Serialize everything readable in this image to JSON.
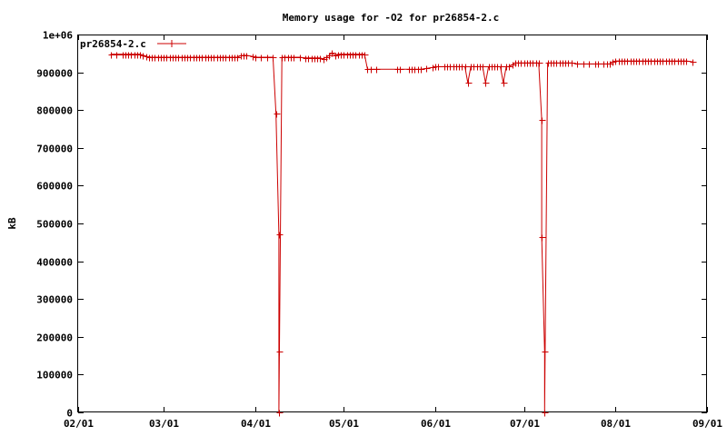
{
  "chart_data": {
    "type": "line",
    "title": "Memory usage for -O2 for pr26854-2.c",
    "xlabel": "",
    "ylabel": "kB",
    "x_axis": {
      "type": "date",
      "range": [
        "2000-02-01",
        "2000-09-01"
      ],
      "ticks": [
        {
          "date": "2000-02-01",
          "label": "02/01"
        },
        {
          "date": "2000-03-01",
          "label": "03/01"
        },
        {
          "date": "2000-04-01",
          "label": "04/01"
        },
        {
          "date": "2000-05-01",
          "label": "05/01"
        },
        {
          "date": "2000-06-01",
          "label": "06/01"
        },
        {
          "date": "2000-07-01",
          "label": "07/01"
        },
        {
          "date": "2000-08-01",
          "label": "08/01"
        },
        {
          "date": "2000-09-01",
          "label": "09/01"
        }
      ]
    },
    "y_axis": {
      "range": [
        0,
        1000000
      ],
      "ticks": [
        {
          "value": 0,
          "label": "0"
        },
        {
          "value": 100000,
          "label": "100000"
        },
        {
          "value": 200000,
          "label": "200000"
        },
        {
          "value": 300000,
          "label": "300000"
        },
        {
          "value": 400000,
          "label": "400000"
        },
        {
          "value": 500000,
          "label": "500000"
        },
        {
          "value": 600000,
          "label": "600000"
        },
        {
          "value": 700000,
          "label": "700000"
        },
        {
          "value": 800000,
          "label": "800000"
        },
        {
          "value": 900000,
          "label": "900000"
        },
        {
          "value": 1000000,
          "label": "1e+06"
        }
      ]
    },
    "grid": false,
    "legend": {
      "position": "top-left",
      "entries": [
        "pr26854-2.c"
      ]
    },
    "series": [
      {
        "name": "pr26854-2.c",
        "color": "#cc0000",
        "marker": "plus",
        "points": [
          [
            "2000-02-12",
            948000
          ],
          [
            "2000-02-14",
            948000
          ],
          [
            "2000-02-16",
            948000
          ],
          [
            "2000-02-17",
            948000
          ],
          [
            "2000-02-18",
            948000
          ],
          [
            "2000-02-19",
            948000
          ],
          [
            "2000-02-20",
            948000
          ],
          [
            "2000-02-21",
            948000
          ],
          [
            "2000-02-22",
            948000
          ],
          [
            "2000-02-23",
            945000
          ],
          [
            "2000-02-24",
            942000
          ],
          [
            "2000-02-25",
            940000
          ],
          [
            "2000-02-26",
            940000
          ],
          [
            "2000-02-27",
            940000
          ],
          [
            "2000-02-28",
            940000
          ],
          [
            "2000-02-29",
            940000
          ],
          [
            "2000-03-01",
            940000
          ],
          [
            "2000-03-02",
            940000
          ],
          [
            "2000-03-03",
            940000
          ],
          [
            "2000-03-04",
            940000
          ],
          [
            "2000-03-05",
            940000
          ],
          [
            "2000-03-06",
            940000
          ],
          [
            "2000-03-07",
            940000
          ],
          [
            "2000-03-08",
            940000
          ],
          [
            "2000-03-09",
            940000
          ],
          [
            "2000-03-10",
            940000
          ],
          [
            "2000-03-11",
            940000
          ],
          [
            "2000-03-12",
            940000
          ],
          [
            "2000-03-13",
            940000
          ],
          [
            "2000-03-14",
            940000
          ],
          [
            "2000-03-15",
            940000
          ],
          [
            "2000-03-16",
            940000
          ],
          [
            "2000-03-17",
            940000
          ],
          [
            "2000-03-18",
            940000
          ],
          [
            "2000-03-19",
            940000
          ],
          [
            "2000-03-20",
            940000
          ],
          [
            "2000-03-21",
            940000
          ],
          [
            "2000-03-22",
            940000
          ],
          [
            "2000-03-23",
            940000
          ],
          [
            "2000-03-24",
            940000
          ],
          [
            "2000-03-25",
            940000
          ],
          [
            "2000-03-26",
            940000
          ],
          [
            "2000-03-27",
            944000
          ],
          [
            "2000-03-28",
            945000
          ],
          [
            "2000-03-29",
            945000
          ],
          [
            "2000-03-31",
            942000
          ],
          [
            "2000-04-01",
            940000
          ],
          [
            "2000-04-03",
            940000
          ],
          [
            "2000-04-05",
            940000
          ],
          [
            "2000-04-07",
            940000
          ],
          [
            "2000-04-08",
            790000
          ],
          [
            "2000-04-09",
            470000
          ],
          [
            "2000-04-09",
            160000
          ],
          [
            "2000-04-09",
            0
          ],
          [
            "2000-04-10",
            940000
          ],
          [
            "2000-04-11",
            940000
          ],
          [
            "2000-04-12",
            940000
          ],
          [
            "2000-04-13",
            940000
          ],
          [
            "2000-04-14",
            940000
          ],
          [
            "2000-04-16",
            940000
          ],
          [
            "2000-04-18",
            938000
          ],
          [
            "2000-04-19",
            938000
          ],
          [
            "2000-04-20",
            938000
          ],
          [
            "2000-04-21",
            938000
          ],
          [
            "2000-04-22",
            938000
          ],
          [
            "2000-04-23",
            938000
          ],
          [
            "2000-04-24",
            935000
          ],
          [
            "2000-04-25",
            940000
          ],
          [
            "2000-04-26",
            945000
          ],
          [
            "2000-04-27",
            952000
          ],
          [
            "2000-04-28",
            945000
          ],
          [
            "2000-04-29",
            948000
          ],
          [
            "2000-04-30",
            948000
          ],
          [
            "2000-05-01",
            948000
          ],
          [
            "2000-05-02",
            948000
          ],
          [
            "2000-05-03",
            948000
          ],
          [
            "2000-05-04",
            948000
          ],
          [
            "2000-05-05",
            948000
          ],
          [
            "2000-05-06",
            948000
          ],
          [
            "2000-05-07",
            948000
          ],
          [
            "2000-05-08",
            948000
          ],
          [
            "2000-05-09",
            908000
          ],
          [
            "2000-05-10",
            908000
          ],
          [
            "2000-05-12",
            908000
          ],
          [
            "2000-05-19",
            908000
          ],
          [
            "2000-05-20",
            908000
          ],
          [
            "2000-05-23",
            908000
          ],
          [
            "2000-05-24",
            908000
          ],
          [
            "2000-05-25",
            908000
          ],
          [
            "2000-05-26",
            908000
          ],
          [
            "2000-05-27",
            908000
          ],
          [
            "2000-05-29",
            910000
          ],
          [
            "2000-05-31",
            913000
          ],
          [
            "2000-06-01",
            915000
          ],
          [
            "2000-06-02",
            915000
          ],
          [
            "2000-06-04",
            915000
          ],
          [
            "2000-06-05",
            915000
          ],
          [
            "2000-06-06",
            915000
          ],
          [
            "2000-06-07",
            915000
          ],
          [
            "2000-06-08",
            915000
          ],
          [
            "2000-06-09",
            915000
          ],
          [
            "2000-06-10",
            915000
          ],
          [
            "2000-06-11",
            915000
          ],
          [
            "2000-06-12",
            872000
          ],
          [
            "2000-06-13",
            915000
          ],
          [
            "2000-06-14",
            915000
          ],
          [
            "2000-06-15",
            915000
          ],
          [
            "2000-06-16",
            915000
          ],
          [
            "2000-06-17",
            915000
          ],
          [
            "2000-06-18",
            872000
          ],
          [
            "2000-06-19",
            915000
          ],
          [
            "2000-06-20",
            915000
          ],
          [
            "2000-06-21",
            915000
          ],
          [
            "2000-06-22",
            915000
          ],
          [
            "2000-06-23",
            915000
          ],
          [
            "2000-06-24",
            872000
          ],
          [
            "2000-06-25",
            915000
          ],
          [
            "2000-06-26",
            915000
          ],
          [
            "2000-06-27",
            920000
          ],
          [
            "2000-06-28",
            925000
          ],
          [
            "2000-06-29",
            925000
          ],
          [
            "2000-06-30",
            925000
          ],
          [
            "2000-07-01",
            925000
          ],
          [
            "2000-07-02",
            925000
          ],
          [
            "2000-07-03",
            925000
          ],
          [
            "2000-07-04",
            925000
          ],
          [
            "2000-07-05",
            925000
          ],
          [
            "2000-07-06",
            925000
          ],
          [
            "2000-07-07",
            775000
          ],
          [
            "2000-07-07",
            465000
          ],
          [
            "2000-07-08",
            160000
          ],
          [
            "2000-07-08",
            0
          ],
          [
            "2000-07-09",
            925000
          ],
          [
            "2000-07-10",
            925000
          ],
          [
            "2000-07-11",
            925000
          ],
          [
            "2000-07-12",
            925000
          ],
          [
            "2000-07-13",
            925000
          ],
          [
            "2000-07-14",
            925000
          ],
          [
            "2000-07-15",
            925000
          ],
          [
            "2000-07-16",
            925000
          ],
          [
            "2000-07-17",
            925000
          ],
          [
            "2000-07-19",
            922000
          ],
          [
            "2000-07-21",
            922000
          ],
          [
            "2000-07-23",
            922000
          ],
          [
            "2000-07-25",
            922000
          ],
          [
            "2000-07-26",
            922000
          ],
          [
            "2000-07-28",
            922000
          ],
          [
            "2000-07-29",
            922000
          ],
          [
            "2000-07-30",
            922000
          ],
          [
            "2000-07-31",
            928000
          ],
          [
            "2000-08-01",
            930000
          ],
          [
            "2000-08-02",
            930000
          ],
          [
            "2000-08-03",
            930000
          ],
          [
            "2000-08-04",
            930000
          ],
          [
            "2000-08-05",
            930000
          ],
          [
            "2000-08-06",
            930000
          ],
          [
            "2000-08-07",
            930000
          ],
          [
            "2000-08-08",
            930000
          ],
          [
            "2000-08-09",
            930000
          ],
          [
            "2000-08-10",
            930000
          ],
          [
            "2000-08-11",
            930000
          ],
          [
            "2000-08-12",
            930000
          ],
          [
            "2000-08-13",
            930000
          ],
          [
            "2000-08-14",
            930000
          ],
          [
            "2000-08-15",
            930000
          ],
          [
            "2000-08-16",
            930000
          ],
          [
            "2000-08-17",
            930000
          ],
          [
            "2000-08-18",
            930000
          ],
          [
            "2000-08-19",
            930000
          ],
          [
            "2000-08-20",
            930000
          ],
          [
            "2000-08-21",
            930000
          ],
          [
            "2000-08-22",
            930000
          ],
          [
            "2000-08-23",
            930000
          ],
          [
            "2000-08-24",
            930000
          ],
          [
            "2000-08-25",
            930000
          ],
          [
            "2000-08-27",
            928000
          ]
        ]
      }
    ]
  }
}
